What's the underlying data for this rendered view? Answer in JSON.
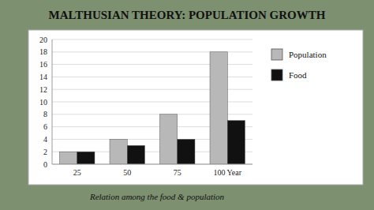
{
  "chart_data": {
    "type": "bar",
    "title": "MALTHUSIAN THEORY: POPULATION GROWTH",
    "categories": [
      "25",
      "50",
      "75",
      "100 Year"
    ],
    "series": [
      {
        "name": "Population",
        "color": "#b8b8b8",
        "values": [
          2,
          4,
          8,
          18
        ]
      },
      {
        "name": "Food",
        "color": "#111111",
        "values": [
          2,
          3,
          4,
          7
        ]
      }
    ],
    "xlabel": "Relation among the food & population",
    "ylim": [
      0,
      20
    ],
    "yticks": [
      0,
      2,
      4,
      6,
      8,
      10,
      12,
      14,
      16,
      18,
      20
    ],
    "grid": true,
    "legend": "right"
  }
}
